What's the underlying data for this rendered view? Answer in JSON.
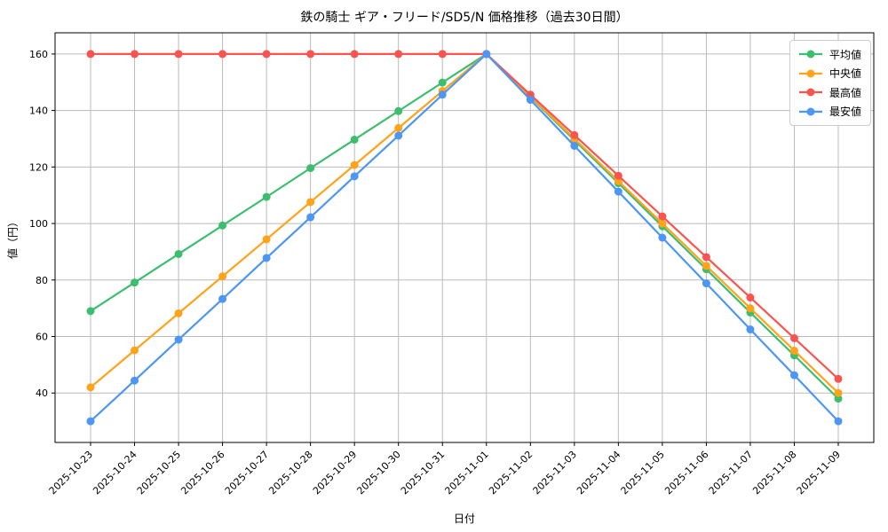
{
  "chart_data": {
    "type": "line",
    "title": "鉄の騎士 ギア・フリード/SD5/N 価格推移（過去30日間）",
    "xlabel": "日付",
    "ylabel": "値（円）",
    "categories": [
      "2025-10-23",
      "2025-10-24",
      "2025-10-25",
      "2025-10-26",
      "2025-10-27",
      "2025-10-28",
      "2025-10-29",
      "2025-10-30",
      "2025-10-31",
      "2025-11-01",
      "2025-11-02",
      "2025-11-03",
      "2025-11-04",
      "2025-11-05",
      "2025-11-06",
      "2025-11-07",
      "2025-11-08",
      "2025-11-09"
    ],
    "series": [
      {
        "key": "average",
        "name": "平均値",
        "color": "#3cbe6e",
        "values": [
          69,
          79.1,
          89.2,
          99.3,
          109.4,
          119.6,
          129.7,
          139.8,
          149.9,
          160,
          144.8,
          129.5,
          114.3,
          99,
          83.8,
          68.5,
          53.3,
          38
        ]
      },
      {
        "key": "median",
        "name": "中央値",
        "color": "#ffa31a",
        "values": [
          42,
          55.1,
          68.2,
          81.3,
          94.4,
          107.6,
          120.7,
          133.8,
          146.9,
          160,
          145,
          130,
          115,
          100,
          85,
          70,
          55,
          40
        ]
      },
      {
        "key": "highest",
        "name": "最高値",
        "color": "#f95450",
        "values": [
          160,
          160,
          160,
          160,
          160,
          160,
          160,
          160,
          160,
          160,
          145.6,
          131.3,
          116.9,
          102.5,
          88.1,
          73.8,
          59.4,
          45
        ]
      },
      {
        "key": "lowest",
        "name": "最安値",
        "color": "#4d96f5",
        "values": [
          30,
          44.4,
          58.9,
          73.3,
          87.8,
          102.2,
          116.7,
          131.1,
          145.6,
          160,
          143.8,
          127.5,
          111.3,
          95,
          78.8,
          62.5,
          46.3,
          30
        ]
      }
    ],
    "ylim": [
      22.5,
      167.5
    ],
    "yticks": [
      40,
      60,
      80,
      100,
      120,
      140,
      160
    ],
    "grid": true,
    "legend_position": "upper right",
    "grid_color": "#bbbbbb",
    "axis_color": "#000000"
  }
}
